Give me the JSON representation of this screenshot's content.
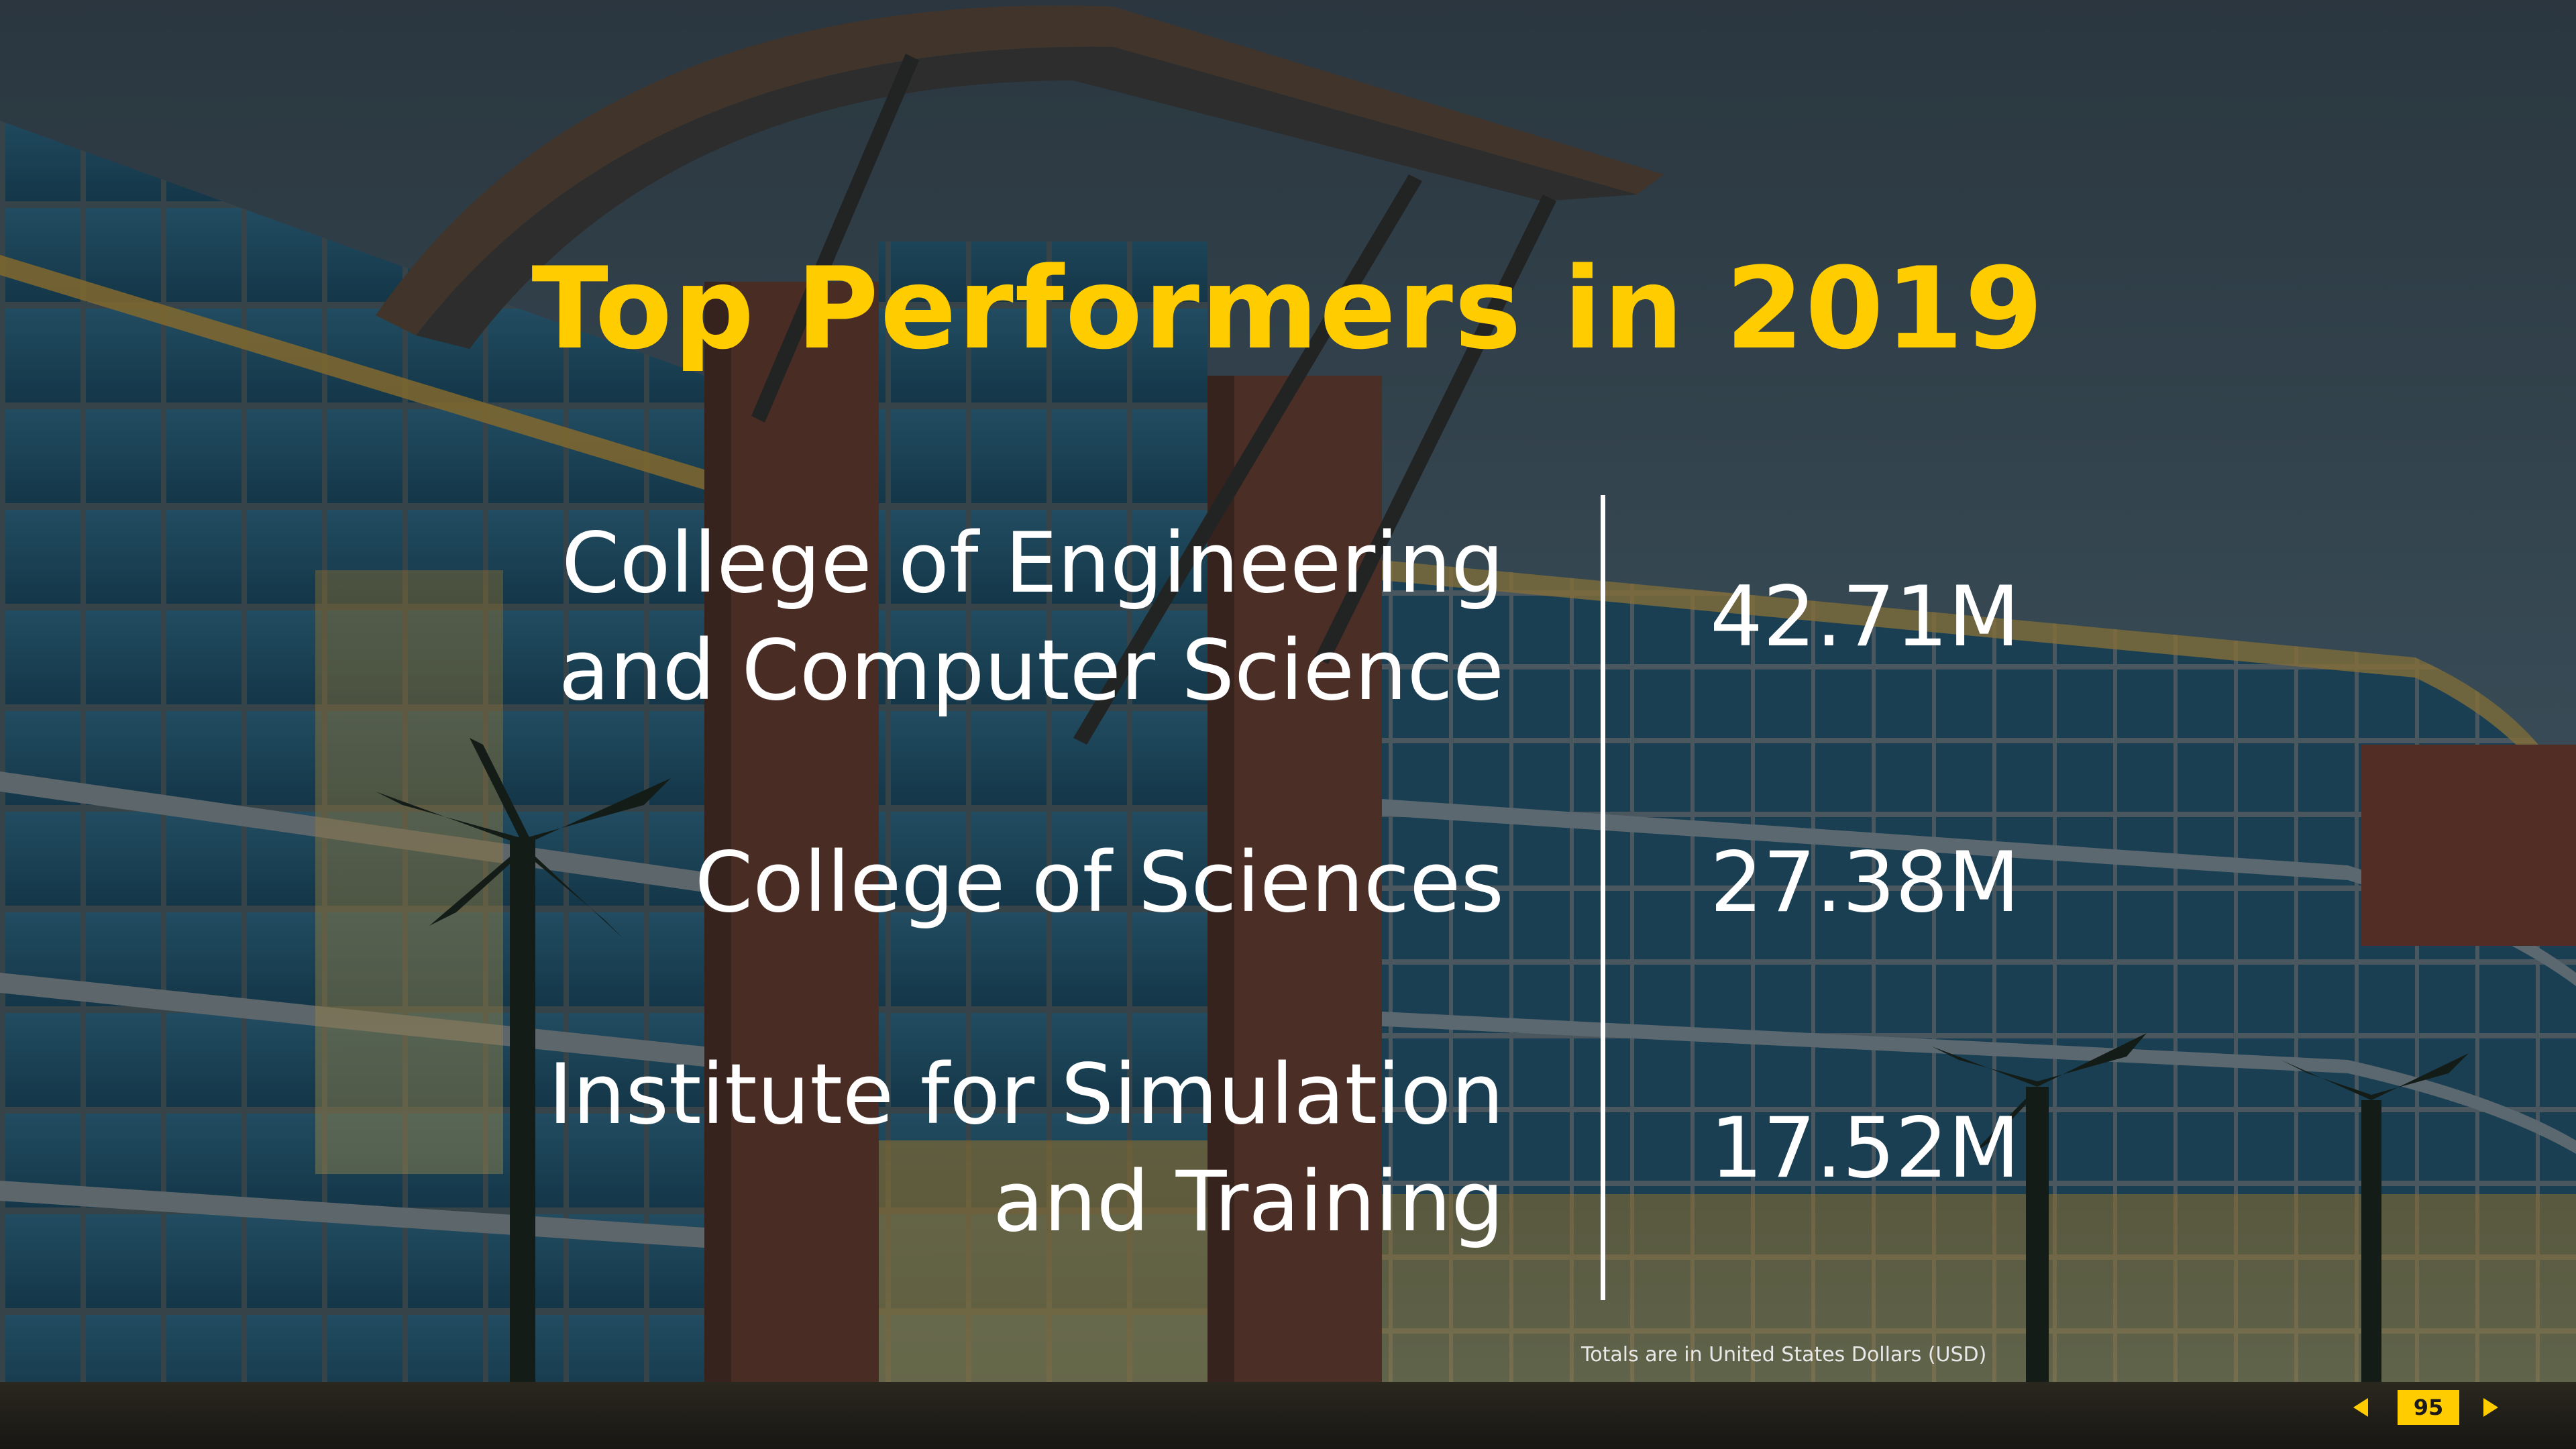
{
  "slide": {
    "title": "Top Performers in 2019",
    "performers": [
      {
        "label_lines": [
          "College of Engineering",
          "and Computer Science"
        ],
        "value": "42.71M"
      },
      {
        "label_lines": [
          "College of Sciences"
        ],
        "value": "27.38M"
      },
      {
        "label_lines": [
          "Institute for Simulation",
          "and Training"
        ],
        "value": "17.52M"
      }
    ],
    "footnote": "Totals are in United States Dollars (USD)"
  },
  "pager": {
    "page_number": "95",
    "prev_icon": "triangle-left-icon",
    "next_icon": "triangle-right-icon"
  },
  "colors": {
    "accent": "#ffcc00",
    "text": "#ffffff",
    "overlay": "#12181e"
  }
}
